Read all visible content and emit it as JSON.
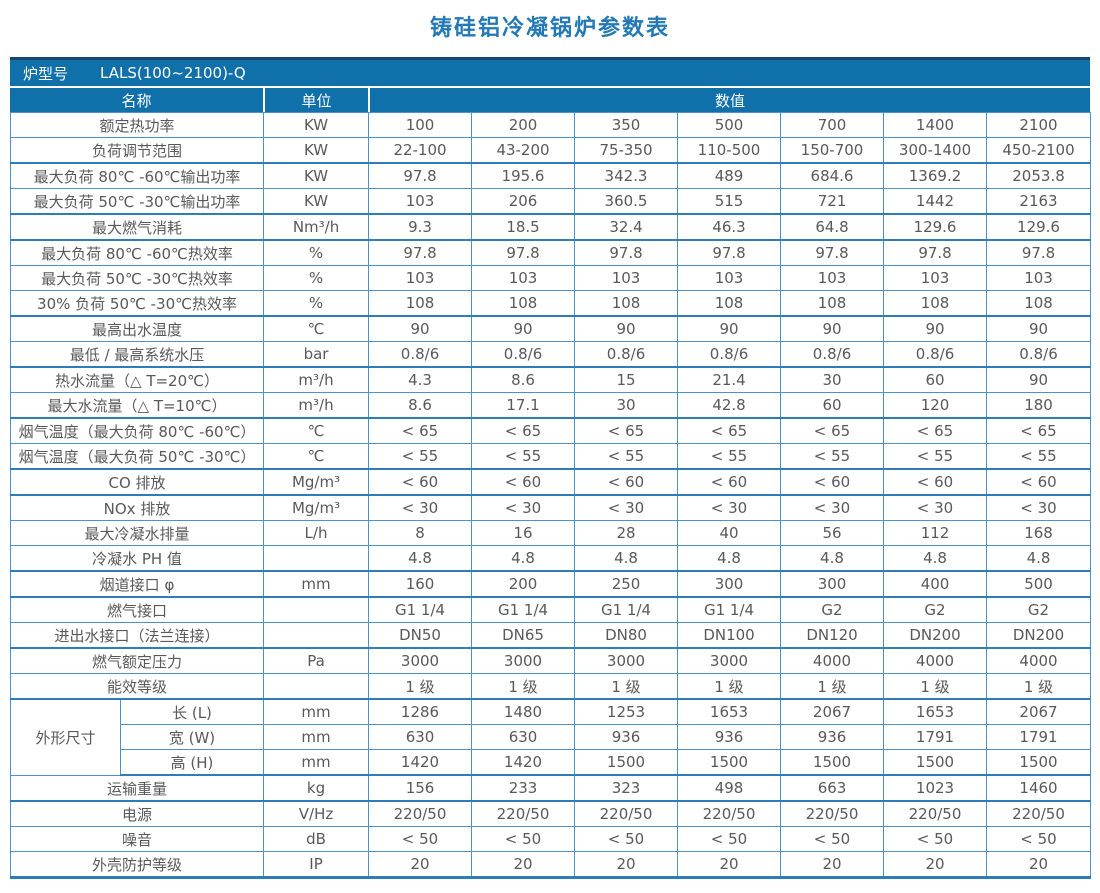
{
  "page_title": "铸硅铝冷凝锅炉参数表",
  "colors": {
    "title_blue": "#2279B5",
    "header_blue": "#0F70AA",
    "navy_strip": "#16486E",
    "border_blue": "#4B92CA",
    "border_thick_blue": "#2E7CB8",
    "text_gray": "#58595B"
  },
  "table": {
    "model_label": "炉型号",
    "model_value": "LALS(100~2100)-Q",
    "columns": {
      "name": "名称",
      "unit": "单位",
      "values": "数值"
    },
    "dim_group_label": "外形尺寸",
    "rows": [
      {
        "label": "额定热功率",
        "unit": "KW",
        "values": [
          "100",
          "200",
          "350",
          "500",
          "700",
          "1400",
          "2100"
        ]
      },
      {
        "label": "负荷调节范围",
        "unit": "KW",
        "values": [
          "22-100",
          "43-200",
          "75-350",
          "110-500",
          "150-700",
          "300-1400",
          "450-2100"
        ],
        "thick": true
      },
      {
        "label": "最大负荷 80℃ -60℃输出功率",
        "unit": "KW",
        "values": [
          "97.8",
          "195.6",
          "342.3",
          "489",
          "684.6",
          "1369.2",
          "2053.8"
        ]
      },
      {
        "label": "最大负荷 50℃ -30℃输出功率",
        "unit": "KW",
        "values": [
          "103",
          "206",
          "360.5",
          "515",
          "721",
          "1442",
          "2163"
        ],
        "thick": true
      },
      {
        "label": "最大燃气消耗",
        "unit": "Nm³/h",
        "values": [
          "9.3",
          "18.5",
          "32.4",
          "46.3",
          "64.8",
          "129.6",
          "129.6"
        ],
        "thick": true
      },
      {
        "label": "最大负荷 80℃ -60℃热效率",
        "unit": "%",
        "values": [
          "97.8",
          "97.8",
          "97.8",
          "97.8",
          "97.8",
          "97.8",
          "97.8"
        ]
      },
      {
        "label": "最大负荷 50℃ -30℃热效率",
        "unit": "%",
        "values": [
          "103",
          "103",
          "103",
          "103",
          "103",
          "103",
          "103"
        ]
      },
      {
        "label": "30% 负荷 50℃ -30℃热效率",
        "unit": "%",
        "values": [
          "108",
          "108",
          "108",
          "108",
          "108",
          "108",
          "108"
        ],
        "thick": true
      },
      {
        "label": "最高出水温度",
        "unit": "℃",
        "values": [
          "90",
          "90",
          "90",
          "90",
          "90",
          "90",
          "90"
        ]
      },
      {
        "label": "最低 / 最高系统水压",
        "unit": "bar",
        "values": [
          "0.8/6",
          "0.8/6",
          "0.8/6",
          "0.8/6",
          "0.8/6",
          "0.8/6",
          "0.8/6"
        ],
        "thick": true
      },
      {
        "label": "热水流量（△ T=20℃）",
        "unit": "m³/h",
        "values": [
          "4.3",
          "8.6",
          "15",
          "21.4",
          "30",
          "60",
          "90"
        ]
      },
      {
        "label": "最大水流量（△ T=10℃）",
        "unit": "m³/h",
        "values": [
          "8.6",
          "17.1",
          "30",
          "42.8",
          "60",
          "120",
          "180"
        ],
        "thick": true
      },
      {
        "label": "烟气温度（最大负荷 80℃ -60℃）",
        "unit": "℃",
        "values": [
          "< 65",
          "< 65",
          "< 65",
          "< 65",
          "< 65",
          "< 65",
          "< 65"
        ]
      },
      {
        "label": "烟气温度（最大负荷 50℃ -30℃）",
        "unit": "℃",
        "values": [
          "< 55",
          "< 55",
          "< 55",
          "< 55",
          "< 55",
          "< 55",
          "< 55"
        ],
        "thick": true
      },
      {
        "label": "CO 排放",
        "unit": "Mg/m³",
        "values": [
          "< 60",
          "< 60",
          "< 60",
          "< 60",
          "< 60",
          "< 60",
          "< 60"
        ],
        "thick": true
      },
      {
        "label": "NOx 排放",
        "unit": "Mg/m³",
        "values": [
          "< 30",
          "< 30",
          "< 30",
          "< 30",
          "< 30",
          "< 30",
          "< 30"
        ]
      },
      {
        "label": "最大冷凝水排量",
        "unit": "L/h",
        "values": [
          "8",
          "16",
          "28",
          "40",
          "56",
          "112",
          "168"
        ]
      },
      {
        "label": "冷凝水 PH 值",
        "unit": "",
        "values": [
          "4.8",
          "4.8",
          "4.8",
          "4.8",
          "4.8",
          "4.8",
          "4.8"
        ],
        "thick": true
      },
      {
        "label": "烟道接口 φ",
        "unit": "mm",
        "values": [
          "160",
          "200",
          "250",
          "300",
          "300",
          "400",
          "500"
        ],
        "thick": true
      },
      {
        "label": "燃气接口",
        "unit": "",
        "values": [
          "G1 1/4",
          "G1 1/4",
          "G1 1/4",
          "G1 1/4",
          "G2",
          "G2",
          "G2"
        ]
      },
      {
        "label": "进出水接口（法兰连接）",
        "unit": "",
        "values": [
          "DN50",
          "DN65",
          "DN80",
          "DN100",
          "DN120",
          "DN200",
          "DN200"
        ],
        "thick": true
      },
      {
        "label": "燃气额定压力",
        "unit": "Pa",
        "values": [
          "3000",
          "3000",
          "3000",
          "3000",
          "4000",
          "4000",
          "4000"
        ]
      },
      {
        "label": "能效等级",
        "unit": "",
        "values": [
          "1 级",
          "1 级",
          "1 级",
          "1 级",
          "1 级",
          "1 级",
          "1 级"
        ],
        "thick": true
      },
      {
        "label": "长 (L)",
        "unit": "mm",
        "values": [
          "1286",
          "1480",
          "1253",
          "1653",
          "2067",
          "1653",
          "2067"
        ],
        "group": "start"
      },
      {
        "label": "宽 (W)",
        "unit": "mm",
        "values": [
          "630",
          "630",
          "936",
          "936",
          "936",
          "1791",
          "1791"
        ],
        "group": "mid"
      },
      {
        "label": "高 (H)",
        "unit": "mm",
        "values": [
          "1420",
          "1420",
          "1500",
          "1500",
          "1500",
          "1500",
          "1500"
        ],
        "group": "end",
        "thick": true
      },
      {
        "label": "运输重量",
        "unit": "kg",
        "values": [
          "156",
          "233",
          "323",
          "498",
          "663",
          "1023",
          "1460"
        ],
        "thick": true
      },
      {
        "label": "电源",
        "unit": "V/Hz",
        "values": [
          "220/50",
          "220/50",
          "220/50",
          "220/50",
          "220/50",
          "220/50",
          "220/50"
        ]
      },
      {
        "label": "噪音",
        "unit": "dB",
        "values": [
          "< 50",
          "< 50",
          "< 50",
          "< 50",
          "< 50",
          "< 50",
          "< 50"
        ]
      },
      {
        "label": "外壳防护等级",
        "unit": "IP",
        "values": [
          "20",
          "20",
          "20",
          "20",
          "20",
          "20",
          "20"
        ]
      }
    ]
  }
}
